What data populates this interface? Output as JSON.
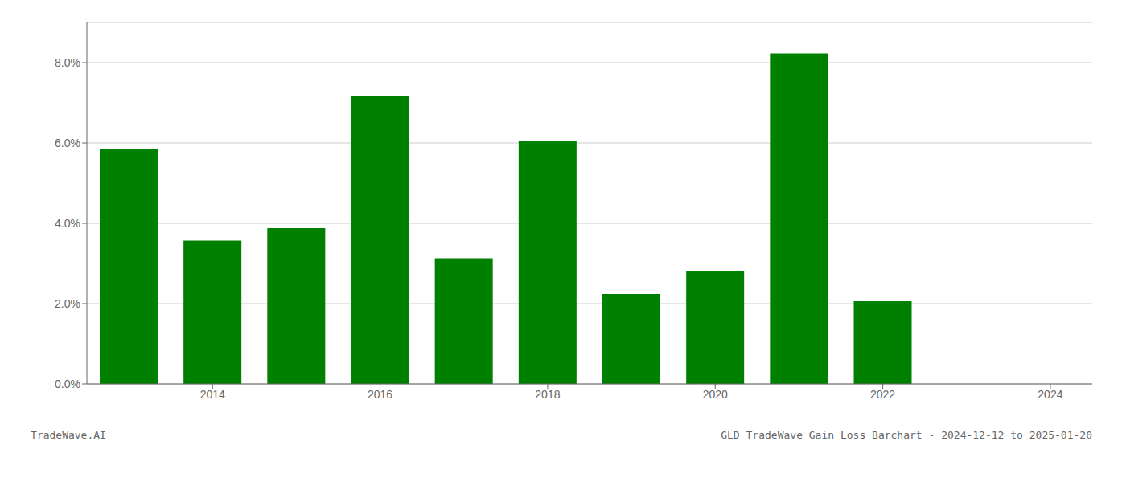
{
  "chart_data": {
    "type": "bar",
    "title": "GLD TradeWave Gain Loss Barchart - 2024-12-12 to 2025-01-20",
    "annotations": [
      "TradeWave.AI"
    ],
    "x": [
      2013,
      2014,
      2015,
      2016,
      2017,
      2018,
      2019,
      2020,
      2021,
      2022,
      2023
    ],
    "values": [
      5.85,
      3.57,
      3.88,
      7.18,
      3.13,
      6.04,
      2.24,
      2.82,
      8.23,
      2.06,
      0.0
    ],
    "color": "#008000",
    "xlim": [
      2012.5,
      2024.5
    ],
    "xticks": [
      2014,
      2016,
      2018,
      2020,
      2022,
      2024
    ],
    "ylim": [
      0,
      9.0
    ],
    "yticks": [
      {
        "value": 0.0,
        "label": "0.0%"
      },
      {
        "value": 2.0,
        "label": "2.0%"
      },
      {
        "value": 4.0,
        "label": "4.0%"
      },
      {
        "value": 6.0,
        "label": "6.0%"
      },
      {
        "value": 8.0,
        "label": "8.0%"
      }
    ],
    "grid": true
  }
}
